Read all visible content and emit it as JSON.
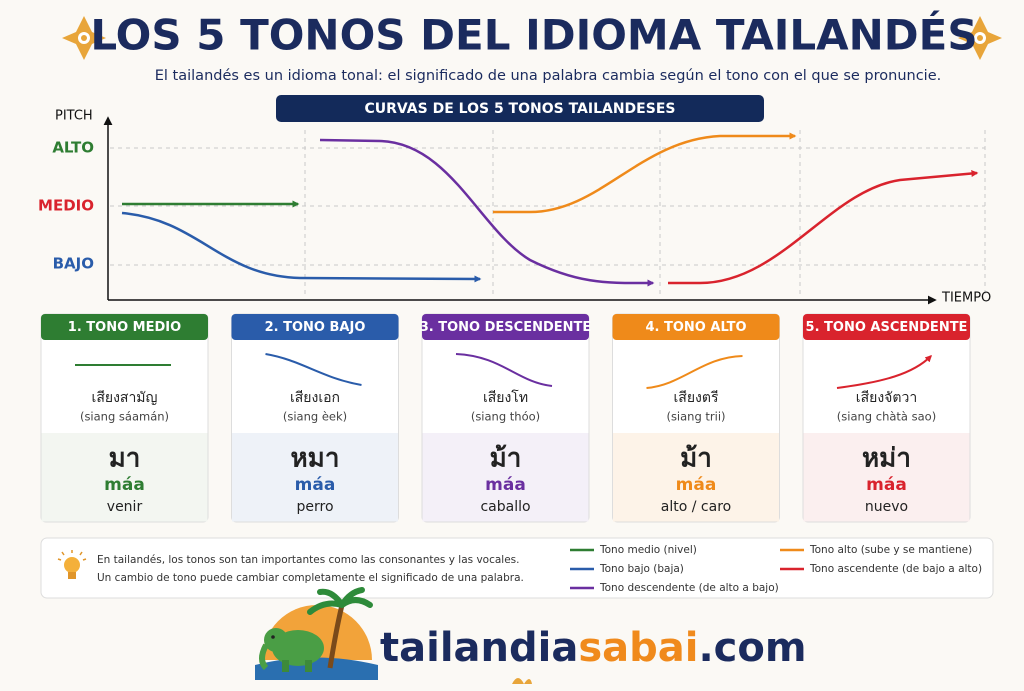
{
  "header": {
    "title": "LOS 5 TONOS DEL IDIOMA TAILANDÉS",
    "subtitle": "El tailandés es un idioma tonal: el significado de una palabra cambia según el tono con el que se pronuncie."
  },
  "chart": {
    "banner": "CURVAS DE LOS 5 TONOS TAILANDESES",
    "y_axis_label": "PITCH",
    "x_axis_label": "TIEMPO",
    "levels": [
      "ALTO",
      "MEDIO",
      "BAJO"
    ]
  },
  "tones": [
    {
      "heading": "1. TONO MEDIO",
      "thai_name": "เสียงสามัญ",
      "romanization": "(siang sáamán)",
      "example_thai": "มา",
      "example_roman": "máa",
      "meaning": "venir"
    },
    {
      "heading": "2. TONO BAJO",
      "thai_name": "เสียงเอก",
      "romanization": "(siang èek)",
      "example_thai": "หมา",
      "example_roman": "máa",
      "meaning": "perro"
    },
    {
      "heading": "3. TONO DESCENDENTE",
      "thai_name": "เสียงโท",
      "romanization": "(siang thóo)",
      "example_thai": "ม้า",
      "example_roman": "máa",
      "meaning": "caballo"
    },
    {
      "heading": "4. TONO ALTO",
      "thai_name": "เสียงตรี",
      "romanization": "(siang trii)",
      "example_thai": "ม้า",
      "example_roman": "máa",
      "meaning": "alto / caro"
    },
    {
      "heading": "5. TONO ASCENDENTE",
      "thai_name": "เสียงจัตวา",
      "romanization": "(siang chàtà sao)",
      "example_thai": "หม่า",
      "example_roman": "máa",
      "meaning": "nuevo"
    }
  ],
  "note": {
    "lines": [
      "En tailandés, los tonos son tan importantes como las consonantes y las vocales.",
      "Un cambio de tono puede cambiar completamente el significado de una palabra."
    ]
  },
  "legend": [
    "Tono medio (nivel)",
    "Tono bajo (baja)",
    "Tono descendente (de alto a bajo)",
    "Tono alto (sube y se mantiene)",
    "Tono ascendente (de bajo a alto)"
  ],
  "brand": {
    "part1": "tailandia",
    "part2": "sabai",
    "part3": ".com"
  }
}
